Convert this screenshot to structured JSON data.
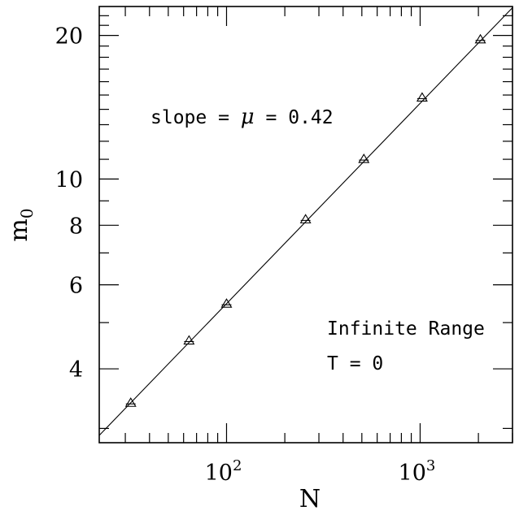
{
  "chart_data": {
    "type": "scatter",
    "scale": "log-log",
    "xlabel": "N",
    "ylabel_main": "m",
    "ylabel_sub": "0",
    "xlim": [
      22,
      3000
    ],
    "ylim": [
      2.8,
      23
    ],
    "x_ticklabels": [
      {
        "value": 100,
        "base": "10",
        "exp": "2"
      },
      {
        "value": 1000,
        "base": "10",
        "exp": "3"
      }
    ],
    "y_ticklabels": [
      {
        "value": 4,
        "label": "4"
      },
      {
        "value": 6,
        "label": "6"
      },
      {
        "value": 8,
        "label": "8"
      },
      {
        "value": 10,
        "label": "10"
      },
      {
        "value": 20,
        "label": "20"
      }
    ],
    "points": [
      {
        "x": 32,
        "y": 3.39
      },
      {
        "x": 64,
        "y": 4.58
      },
      {
        "x": 100,
        "y": 5.47
      },
      {
        "x": 256,
        "y": 8.22
      },
      {
        "x": 512,
        "y": 11.0
      },
      {
        "x": 1024,
        "y": 14.8
      },
      {
        "x": 2048,
        "y": 19.6
      }
    ],
    "fit_line": {
      "slope": 0.42,
      "prefactor": 0.792
    },
    "annotations": {
      "slope_text_before": "slope = ",
      "slope_mu": "μ",
      "slope_text_after": " = 0.42",
      "range_label": "Infinite Range",
      "temp_label": "T = 0"
    }
  }
}
